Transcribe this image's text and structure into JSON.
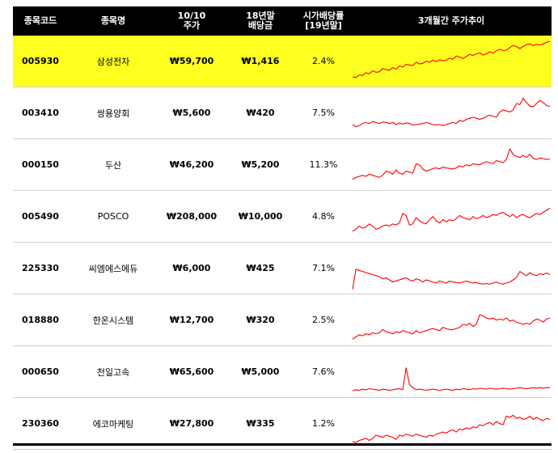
{
  "headers": {
    "code": "종목코드",
    "name": "종목명",
    "price": "10/10\n주가",
    "dividend": "18년말\n배당금",
    "yield": "시가배당률\n[19년말]",
    "trend": "3개월간 주가추이"
  },
  "rows": [
    {
      "code": "005930",
      "name": "삼성전자",
      "price": "₩59,700",
      "dividend": "₩1,416",
      "yield": "2.4%",
      "trend": [
        12,
        11,
        16,
        15,
        20,
        18,
        24,
        21,
        22,
        28,
        26,
        25,
        30,
        27,
        33,
        31,
        36,
        35,
        34,
        40,
        37,
        38,
        42,
        40,
        44,
        41,
        45,
        43,
        44,
        48,
        46,
        52,
        50,
        47,
        51,
        55,
        53,
        56,
        58,
        54,
        56,
        60,
        57,
        62,
        65,
        62,
        63,
        68,
        72,
        70,
        66,
        70,
        74,
        75,
        72,
        74,
        73,
        75,
        78,
        80
      ]
    },
    {
      "code": "003410",
      "name": "쌍용양회",
      "price": "₩5,600",
      "dividend": "₩420",
      "yield": "7.5%",
      "trend": [
        20,
        16,
        18,
        22,
        24,
        22,
        26,
        24,
        22,
        25,
        24,
        22,
        24,
        20,
        23,
        21,
        23,
        22,
        19,
        20,
        21,
        22,
        24,
        22,
        20,
        19,
        20,
        18,
        20,
        22,
        24,
        22,
        28,
        26,
        30,
        32,
        34,
        32,
        30,
        32,
        35,
        38,
        36,
        34,
        44,
        48,
        46,
        44,
        48,
        60,
        58,
        70,
        62,
        55,
        54,
        60,
        66,
        62,
        56,
        55
      ]
    },
    {
      "code": "000150",
      "name": "두산",
      "price": "₩46,200",
      "dividend": "₩5,200",
      "yield": "11.3%",
      "trend": [
        14,
        18,
        20,
        22,
        20,
        24,
        22,
        20,
        18,
        22,
        30,
        28,
        24,
        32,
        26,
        24,
        30,
        28,
        26,
        44,
        42,
        34,
        30,
        32,
        35,
        36,
        34,
        38,
        36,
        35,
        34,
        36,
        40,
        38,
        42,
        40,
        44,
        43,
        42,
        45,
        48,
        46,
        44,
        50,
        48,
        46,
        52,
        72,
        62,
        58,
        56,
        60,
        56,
        62,
        54,
        52,
        55,
        54,
        52,
        53
      ]
    },
    {
      "code": "005490",
      "name": "POSCO",
      "price": "₩208,000",
      "dividend": "₩10,000",
      "yield": "4.8%",
      "trend": [
        14,
        18,
        24,
        20,
        22,
        28,
        24,
        18,
        20,
        24,
        26,
        24,
        28,
        26,
        30,
        48,
        44,
        26,
        28,
        40,
        34,
        30,
        28,
        36,
        42,
        34,
        30,
        36,
        32,
        36,
        34,
        38,
        44,
        40,
        38,
        36,
        42,
        38,
        40,
        44,
        40,
        42,
        46,
        44,
        48,
        50,
        46,
        42,
        46,
        40,
        44,
        46,
        42,
        40,
        44,
        48,
        46,
        50,
        54,
        58
      ]
    },
    {
      "code": "225330",
      "name": "씨엠에스에듀",
      "price": "₩6,000",
      "dividend": "₩425",
      "yield": "7.1%",
      "trend": [
        2,
        40,
        38,
        36,
        34,
        32,
        30,
        28,
        26,
        22,
        24,
        20,
        16,
        18,
        20,
        22,
        24,
        20,
        18,
        22,
        20,
        16,
        20,
        18,
        16,
        14,
        18,
        16,
        14,
        18,
        16,
        15,
        14,
        16,
        18,
        16,
        14,
        15,
        13,
        12,
        13,
        12,
        14,
        16,
        13,
        12,
        14,
        16,
        20,
        24,
        36,
        32,
        28,
        34,
        30,
        28,
        32,
        30,
        33,
        30
      ]
    },
    {
      "code": "018880",
      "name": "한온시스템",
      "price": "₩12,700",
      "dividend": "₩320",
      "yield": "2.5%",
      "trend": [
        6,
        10,
        14,
        12,
        16,
        14,
        18,
        16,
        18,
        24,
        20,
        18,
        16,
        20,
        18,
        22,
        20,
        18,
        16,
        22,
        18,
        20,
        22,
        24,
        26,
        24,
        22,
        28,
        26,
        24,
        24,
        26,
        28,
        34,
        32,
        36,
        30,
        34,
        52,
        50,
        46,
        44,
        46,
        42,
        44,
        42,
        46,
        40,
        42,
        38,
        36,
        34,
        36,
        34,
        40,
        44,
        42,
        38,
        44,
        46
      ]
    },
    {
      "code": "000650",
      "name": "천일고속",
      "price": "₩65,600",
      "dividend": "₩5,000",
      "yield": "7.6%",
      "trend": [
        6,
        8,
        7,
        9,
        8,
        10,
        9,
        8,
        7,
        9,
        8,
        7,
        8,
        9,
        10,
        8,
        50,
        18,
        12,
        8,
        9,
        8,
        7,
        8,
        9,
        8,
        7,
        8,
        9,
        8,
        7,
        9,
        8,
        10,
        9,
        8,
        10,
        9,
        11,
        10,
        9,
        11,
        10,
        9,
        10,
        11,
        10,
        9,
        10,
        11,
        12,
        11,
        10,
        11,
        12,
        11,
        12,
        11,
        12,
        12
      ]
    },
    {
      "code": "230360",
      "name": "에코마케팅",
      "price": "₩27,800",
      "dividend": "₩335",
      "yield": "1.2%",
      "trend": [
        8,
        6,
        10,
        12,
        14,
        10,
        14,
        20,
        18,
        16,
        20,
        18,
        16,
        12,
        20,
        18,
        22,
        20,
        18,
        22,
        20,
        18,
        16,
        20,
        18,
        22,
        24,
        26,
        24,
        28,
        30,
        26,
        32,
        30,
        34,
        32,
        36,
        34,
        40,
        38,
        42,
        44,
        40,
        46,
        42,
        40,
        56,
        54,
        58,
        52,
        54,
        50,
        52,
        56,
        50,
        54,
        50,
        48,
        52,
        50
      ]
    }
  ],
  "highlight_index": 0,
  "colors": {
    "header_bg": "#000000",
    "highlight_bg": "#ffff1f",
    "line": "#ff0000"
  }
}
